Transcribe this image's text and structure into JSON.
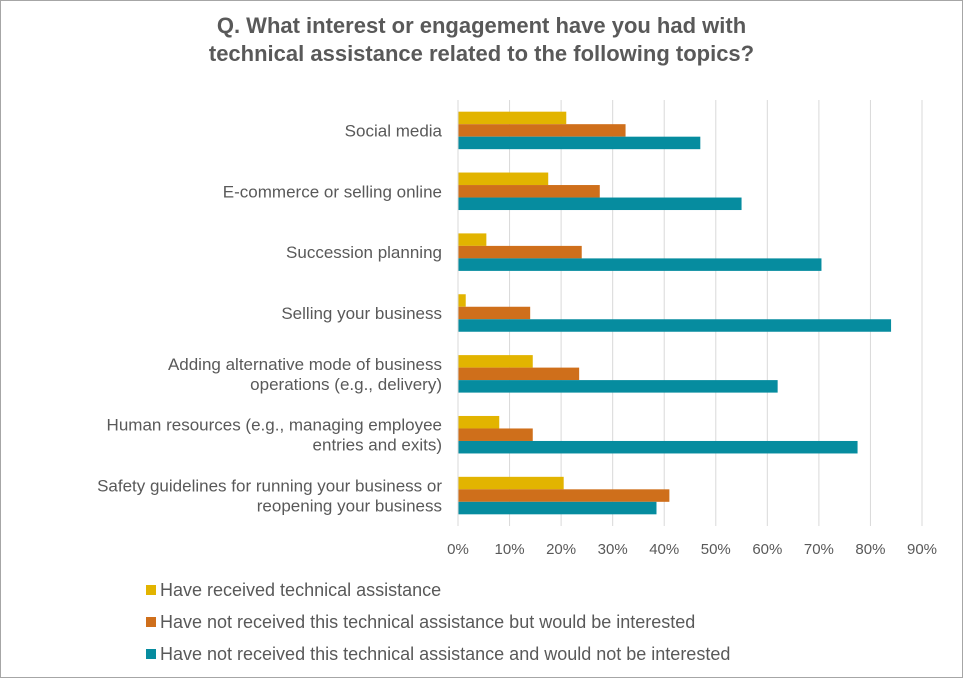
{
  "chart_data": {
    "type": "bar",
    "orientation": "horizontal",
    "title_lines": [
      "Q. What interest or engagement have you had with",
      "technical assistance related to the following topics?"
    ],
    "categories": [
      [
        "Social media"
      ],
      [
        "E-commerce or selling online"
      ],
      [
        "Succession planning"
      ],
      [
        "Selling your business"
      ],
      [
        "Adding alternative mode of business",
        "operations (e.g., delivery)"
      ],
      [
        "Human resources (e.g., managing employee",
        "entries and exits)"
      ],
      [
        "Safety guidelines for running your business or",
        "reopening your business"
      ]
    ],
    "series": [
      {
        "name": "Have received technical assistance",
        "color": "#e2b400",
        "values": [
          21,
          17.5,
          5.5,
          1.5,
          14.5,
          8,
          20.5
        ]
      },
      {
        "name": "Have not received this technical assistance but would be interested",
        "color": "#cf6f1b",
        "values": [
          32.5,
          27.5,
          24,
          14,
          23.5,
          14.5,
          41
        ]
      },
      {
        "name": "Have not received this technical assistance and would not be interested",
        "color": "#068c9f",
        "values": [
          47,
          55,
          70.5,
          84,
          62,
          77.5,
          38.5
        ]
      }
    ],
    "xlim": [
      0,
      90
    ],
    "xticks": [
      "0%",
      "10%",
      "20%",
      "30%",
      "40%",
      "50%",
      "60%",
      "70%",
      "80%",
      "90%"
    ],
    "grid": true,
    "legend_position": "bottom-left"
  }
}
